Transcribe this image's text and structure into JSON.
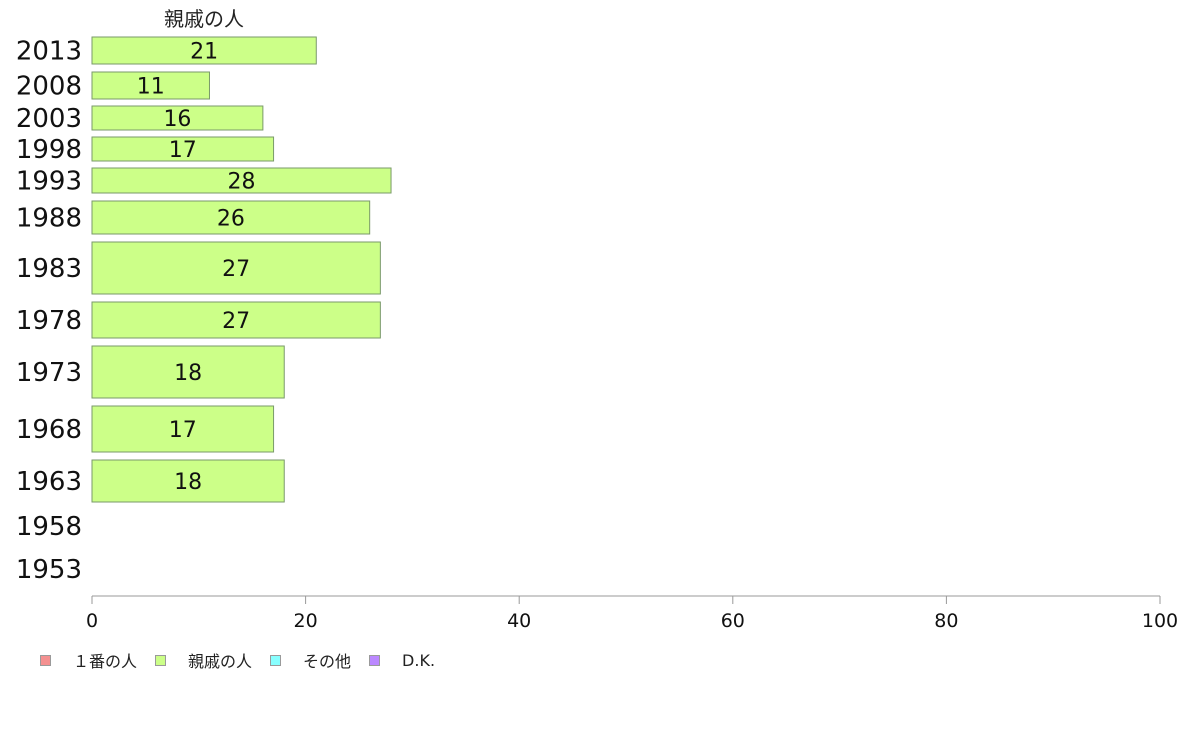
{
  "chart_data": {
    "type": "bar",
    "orientation": "horizontal",
    "series_label": "親戚の人",
    "categories": [
      "2013",
      "2008",
      "2003",
      "1998",
      "1993",
      "1988",
      "1983",
      "1978",
      "1973",
      "1968",
      "1963",
      "1958",
      "1953"
    ],
    "values": [
      21,
      11,
      16,
      17,
      28,
      26,
      27,
      27,
      18,
      17,
      18,
      null,
      null
    ],
    "xlim": [
      0,
      100
    ],
    "xticks": [
      0,
      20,
      40,
      60,
      80,
      100
    ],
    "grid": false,
    "legend_position": "bottom-left",
    "legend": [
      {
        "label": "１番の人",
        "color": "#f49090"
      },
      {
        "label": "親戚の人",
        "color": "#ccff88"
      },
      {
        "label": "その他",
        "color": "#88ffff"
      },
      {
        "label": "D.K.",
        "color": "#bb88ff"
      }
    ],
    "bar_color": "#ccff88"
  }
}
